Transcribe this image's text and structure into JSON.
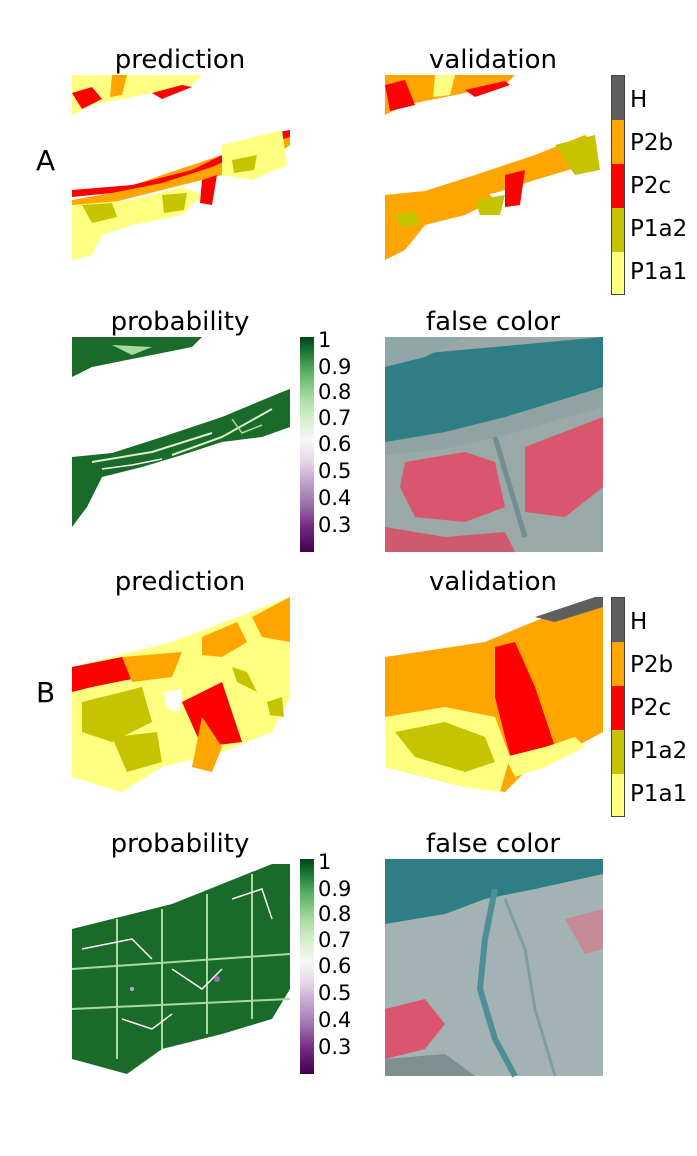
{
  "panels": {
    "A": {
      "label": "A",
      "titles": {
        "prediction": "prediction",
        "validation": "validation",
        "probability": "probability",
        "false_color": "false color"
      }
    },
    "B": {
      "label": "B",
      "titles": {
        "prediction": "prediction",
        "validation": "validation",
        "probability": "probability",
        "false_color": "false color"
      }
    }
  },
  "class_legend": {
    "entries": [
      "H",
      "P2b",
      "P2c",
      "P1a2",
      "P1a1"
    ],
    "colors": {
      "H": "#5f5f5f",
      "P2b": "#ffa500",
      "P2c": "#ff0000",
      "P1a2": "#c6c400",
      "P1a1": "#ffff80"
    }
  },
  "probability_colorbar": {
    "ticks": [
      "1",
      "0.9",
      "0.8",
      "0.7",
      "0.6",
      "0.5",
      "0.4",
      "0.3"
    ],
    "colormap": "PRGn"
  }
}
